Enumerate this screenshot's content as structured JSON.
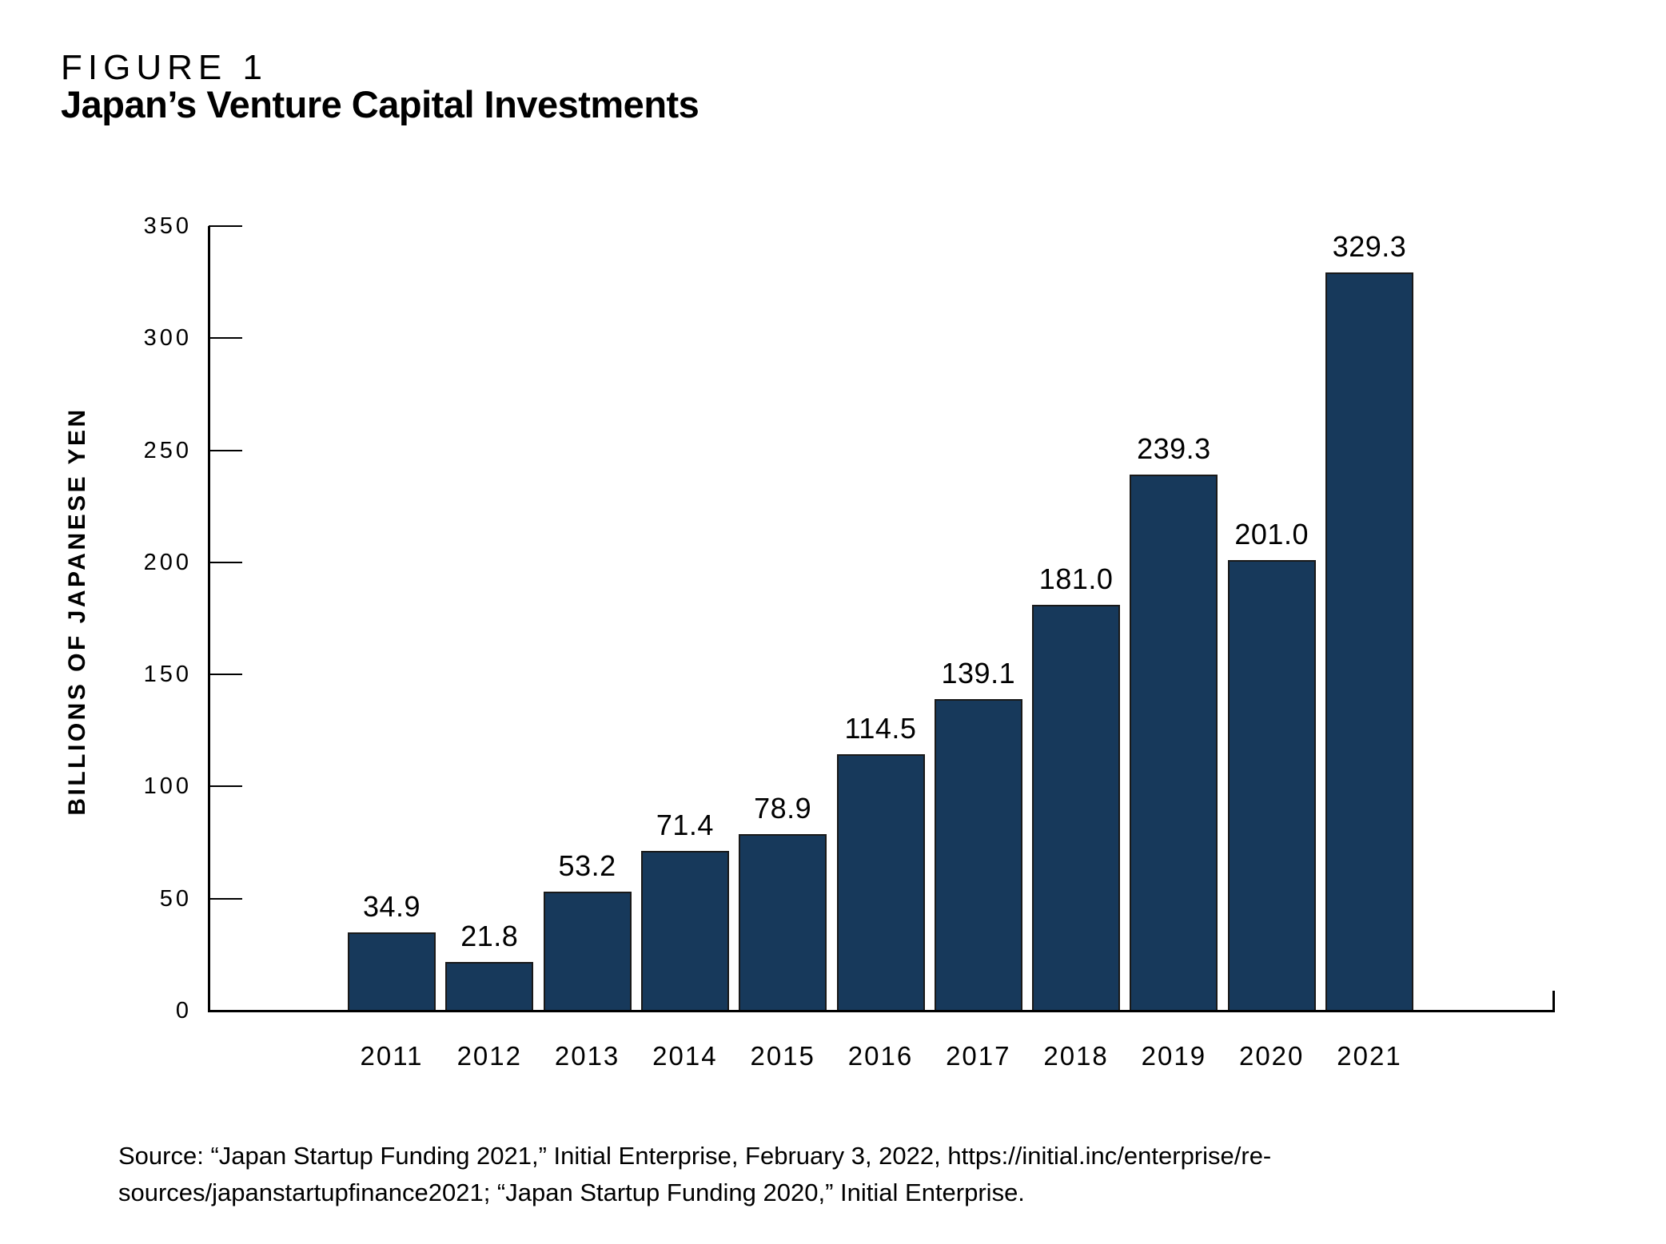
{
  "figure": {
    "label": "FIGURE 1",
    "title": "Japan’s Venture Capital Investments"
  },
  "chart_data": {
    "type": "bar",
    "title": "Japan’s Venture Capital Investments",
    "categories": [
      "2011",
      "2012",
      "2013",
      "2014",
      "2015",
      "2016",
      "2017",
      "2018",
      "2019",
      "2020",
      "2021"
    ],
    "values": [
      34.9,
      21.8,
      53.2,
      71.4,
      78.9,
      114.5,
      139.1,
      181.0,
      239.3,
      201.0,
      329.3
    ],
    "value_labels": [
      "34.9",
      "21.8",
      "53.2",
      "71.4",
      "78.9",
      "114.5",
      "139.1",
      "181.0",
      "239.3",
      "201.0",
      "329.3"
    ],
    "xlabel": "",
    "ylabel": "BILLIONS OF JAPANESE YEN",
    "ylim": [
      0,
      350
    ],
    "yticks": [
      0,
      50,
      100,
      150,
      200,
      250,
      300,
      350
    ],
    "grid": false,
    "legend": "none",
    "bar_color": "#17395B",
    "bar_edge_color": "#191919",
    "axis_color": "#000000",
    "text_color": "#000000"
  },
  "source": {
    "line1": "Source: “Japan Startup Funding 2021,” Initial Enterprise, February 3, 2022, https://initial.inc/enterprise/re-",
    "line2": "sources/japanstartupfinance2021; “Japan Startup Funding 2020,” Initial Enterprise."
  }
}
